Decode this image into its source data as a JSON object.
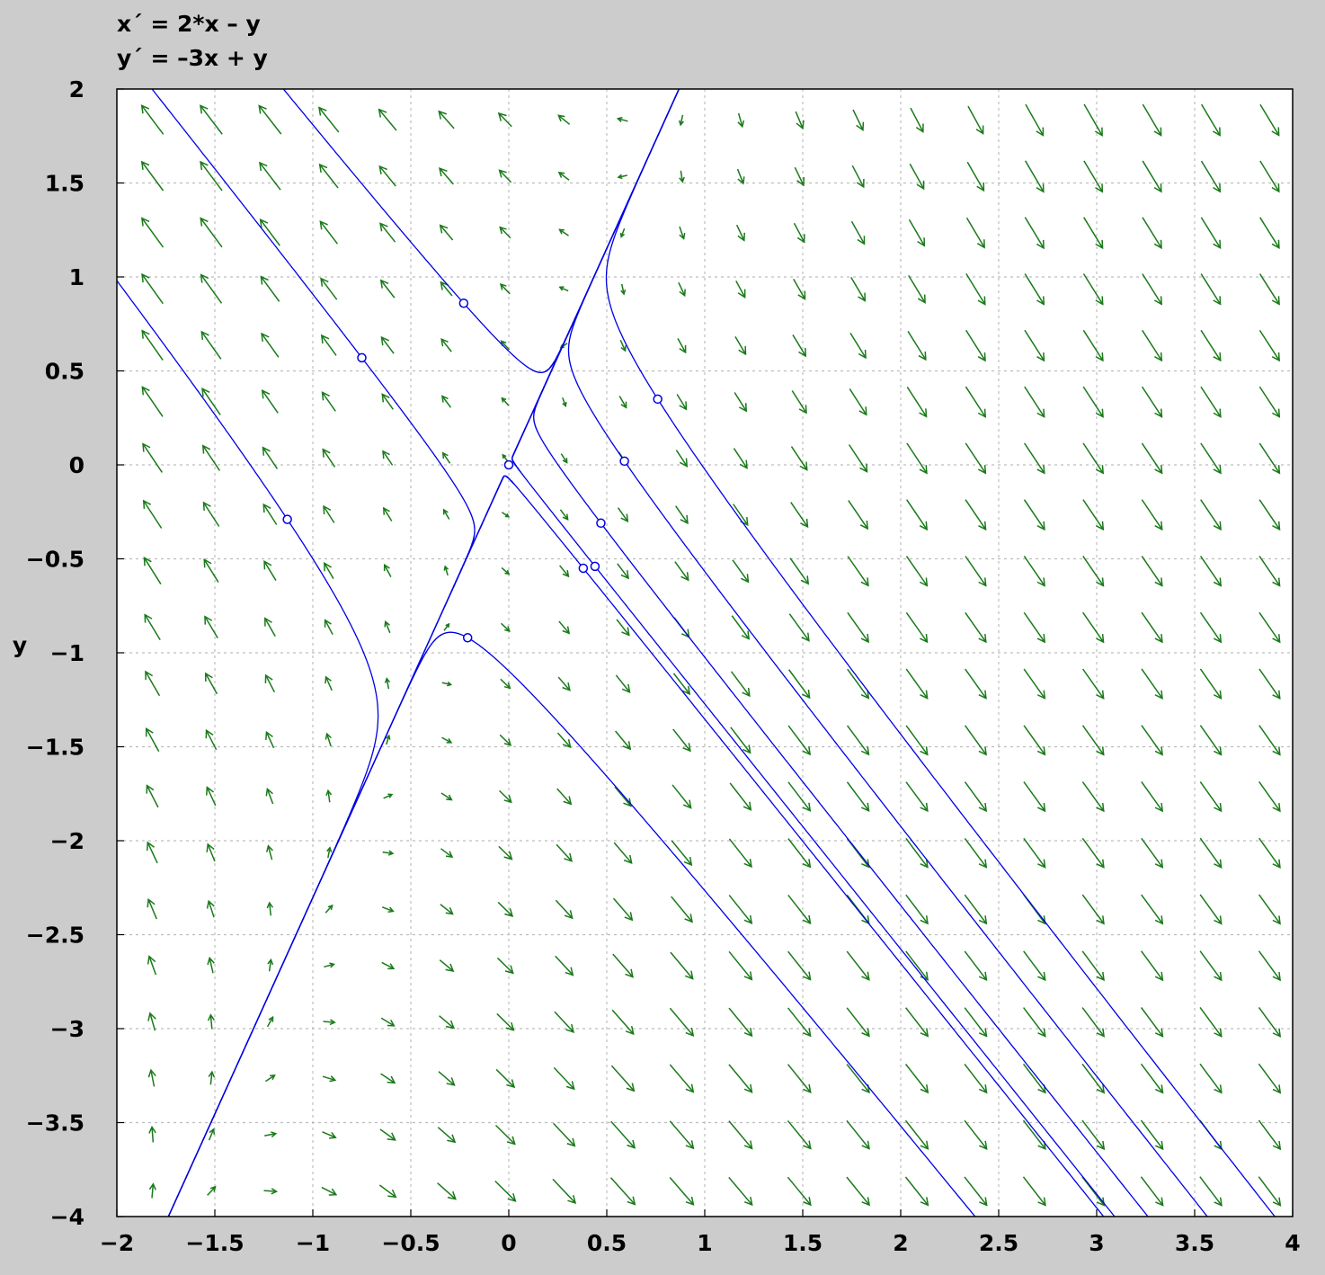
{
  "header": {
    "equation_x": "x´ = 2*x – y",
    "equation_y": "y´ = –3x + y"
  },
  "chart_data": {
    "type": "phase-portrait",
    "system": {
      "dx": "2*x - y",
      "dy": "-3x + y"
    },
    "xlabel": "",
    "ylabel": "y",
    "xlim": [
      -2,
      4
    ],
    "ylim": [
      -4,
      2
    ],
    "xticks": [
      -2,
      -1.5,
      -1,
      -0.5,
      0,
      0.5,
      1,
      1.5,
      2,
      2.5,
      3,
      3.5,
      4
    ],
    "xtick_labels": [
      "-2",
      "-1.5",
      "-1",
      "-0.5",
      "0",
      "0.5",
      "1",
      "1.5",
      "2",
      "2.5",
      "3",
      "3.5",
      "4"
    ],
    "yticks": [
      2,
      1.5,
      1,
      0.5,
      0,
      -0.5,
      -1,
      -1.5,
      -2,
      -2.5,
      -3,
      -3.5,
      -4
    ],
    "ytick_labels": [
      "2",
      "1.5",
      "1",
      "0.5",
      "0",
      "-0.5",
      "-1",
      "-1.5",
      "-2",
      "-2.5",
      "-3",
      "-3.5",
      "-4"
    ],
    "grid": true,
    "direction_field": {
      "color": "#1a7a1a",
      "x_start": -1.85,
      "x_step": 0.3,
      "nx": 20,
      "y_start": 1.85,
      "y_step": -0.3,
      "ny": 20
    },
    "trajectory_color": "#0000e6",
    "initial_points": [
      [
        0,
        0
      ],
      [
        -0.23,
        0.86
      ],
      [
        -0.75,
        0.57
      ],
      [
        -1.13,
        -0.29
      ],
      [
        -0.21,
        -0.92
      ],
      [
        0.76,
        0.35
      ],
      [
        0.59,
        0.02
      ],
      [
        0.47,
        -0.31
      ],
      [
        0.44,
        -0.54
      ],
      [
        0.38,
        -0.55
      ]
    ]
  }
}
